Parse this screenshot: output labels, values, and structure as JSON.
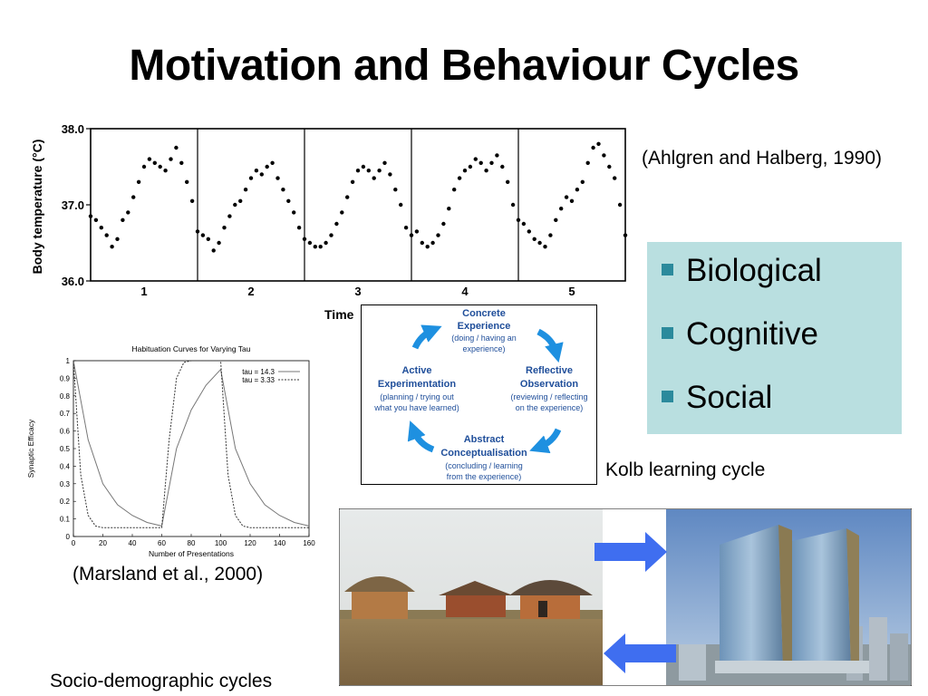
{
  "slide": {
    "title": "Motivation and Behaviour Cycles"
  },
  "temperature_figure": {
    "citation": "(Ahlgren and Halberg, 1990)",
    "chart_data": {
      "type": "scatter",
      "ylabel": "Body  temperature (°C)",
      "xlabel": "Time",
      "y_ticks": [
        "36.0",
        "37.0",
        "38.0"
      ],
      "ylim": [
        36.0,
        38.0
      ],
      "x_ticks": [
        "1",
        "2",
        "3",
        "4",
        "5"
      ],
      "xlim": [
        0,
        5
      ],
      "cycle_boundaries": [
        1,
        2,
        3,
        4
      ],
      "series": [
        {
          "x": [
            0.0,
            0.05,
            0.1,
            0.15,
            0.2,
            0.25,
            0.3,
            0.35,
            0.4,
            0.45,
            0.5,
            0.55,
            0.6,
            0.65,
            0.7,
            0.75,
            0.8,
            0.85,
            0.9,
            0.95,
            1.0,
            1.05,
            1.1,
            1.15,
            1.2,
            1.25,
            1.3,
            1.35,
            1.4,
            1.45,
            1.5,
            1.55,
            1.6,
            1.65,
            1.7,
            1.75,
            1.8,
            1.85,
            1.9,
            1.95,
            2.0,
            2.05,
            2.1,
            2.15,
            2.2,
            2.25,
            2.3,
            2.35,
            2.4,
            2.45,
            2.5,
            2.55,
            2.6,
            2.65,
            2.7,
            2.75,
            2.8,
            2.85,
            2.9,
            2.95,
            3.0,
            3.05,
            3.1,
            3.15,
            3.2,
            3.25,
            3.3,
            3.35,
            3.4,
            3.45,
            3.5,
            3.55,
            3.6,
            3.65,
            3.7,
            3.75,
            3.8,
            3.85,
            3.9,
            3.95,
            4.0,
            4.05,
            4.1,
            4.15,
            4.2,
            4.25,
            4.3,
            4.35,
            4.4,
            4.45,
            4.5,
            4.55,
            4.6,
            4.65,
            4.7,
            4.75,
            4.8,
            4.85,
            4.9,
            4.95,
            5.0
          ],
          "y": [
            36.85,
            36.8,
            36.7,
            36.6,
            36.45,
            36.55,
            36.8,
            36.9,
            37.1,
            37.3,
            37.5,
            37.6,
            37.55,
            37.5,
            37.45,
            37.6,
            37.75,
            37.55,
            37.3,
            37.05,
            36.65,
            36.6,
            36.55,
            36.4,
            36.5,
            36.7,
            36.85,
            37.0,
            37.05,
            37.2,
            37.35,
            37.45,
            37.4,
            37.5,
            37.55,
            37.35,
            37.2,
            37.05,
            36.9,
            36.7,
            36.55,
            36.5,
            36.45,
            36.45,
            36.5,
            36.6,
            36.75,
            36.9,
            37.1,
            37.3,
            37.45,
            37.5,
            37.45,
            37.35,
            37.45,
            37.55,
            37.4,
            37.2,
            37.0,
            36.7,
            36.6,
            36.65,
            36.5,
            36.45,
            36.5,
            36.6,
            36.75,
            36.95,
            37.2,
            37.35,
            37.45,
            37.5,
            37.6,
            37.55,
            37.45,
            37.55,
            37.65,
            37.5,
            37.3,
            37.0,
            36.8,
            36.75,
            36.65,
            36.55,
            36.5,
            36.45,
            36.6,
            36.8,
            36.95,
            37.1,
            37.05,
            37.2,
            37.3,
            37.55,
            37.75,
            37.8,
            37.65,
            37.5,
            37.35,
            37.0,
            36.6
          ]
        }
      ]
    }
  },
  "habituation_figure": {
    "citation": "(Marsland et al., 2000)",
    "chart_data": {
      "type": "line",
      "title": "Habituation Curves for Varying Tau",
      "xlabel": "Number of Presentations",
      "ylabel": "Synaptic Efficacy",
      "xlim": [
        0,
        160
      ],
      "ylim": [
        0,
        1
      ],
      "x_ticks": [
        0,
        20,
        40,
        60,
        80,
        100,
        120,
        140,
        160
      ],
      "y_ticks": [
        0,
        0.1,
        0.2,
        0.3,
        0.4,
        0.5,
        0.6,
        0.7,
        0.8,
        0.9,
        1
      ],
      "legend_position": "top-right",
      "series": [
        {
          "name": "tau = 14.3",
          "style": "solid",
          "tau": 14.3,
          "x": [
            0,
            10,
            20,
            30,
            40,
            50,
            60,
            70,
            80,
            90,
            100,
            110,
            120,
            130,
            140,
            150,
            160
          ],
          "y": [
            1.0,
            0.55,
            0.3,
            0.18,
            0.12,
            0.08,
            0.06,
            0.5,
            0.72,
            0.86,
            0.95,
            0.5,
            0.3,
            0.18,
            0.12,
            0.08,
            0.06
          ]
        },
        {
          "name": "tau = 3.33",
          "style": "dashed",
          "tau": 3.33,
          "x": [
            0,
            5,
            10,
            15,
            20,
            40,
            60,
            65,
            70,
            75,
            80,
            100,
            105,
            110,
            115,
            120,
            140,
            160
          ],
          "y": [
            1.0,
            0.35,
            0.12,
            0.06,
            0.05,
            0.05,
            0.05,
            0.55,
            0.9,
            0.99,
            1.0,
            1.0,
            0.35,
            0.12,
            0.06,
            0.05,
            0.05,
            0.05
          ]
        }
      ]
    }
  },
  "kolb_diagram": {
    "caption": "Kolb learning cycle",
    "stages": [
      {
        "title_line1": "Concrete",
        "title_line2": "Experience",
        "sub_line1": "(doing / having an",
        "sub_line2": "experience)"
      },
      {
        "title_line1": "Reflective",
        "title_line2": "Observation",
        "sub_line1": "(reviewing / reflecting",
        "sub_line2": "on the experience)"
      },
      {
        "title_line1": "Abstract",
        "title_line2": "Conceptualisation",
        "sub_line1": "(concluding / learning",
        "sub_line2": "from the experience)"
      },
      {
        "title_line1": "Active",
        "title_line2": "Experimentation",
        "sub_line1": "(planning / trying out",
        "sub_line2": "what you have learned)"
      }
    ],
    "colors": {
      "title": "#1f4e9a",
      "text": "#1f4e9a",
      "arrow": "#1e90e0"
    }
  },
  "bullet_list": {
    "items": [
      "Biological",
      "Cognitive",
      "Social"
    ],
    "colors": {
      "background": "#b9dfe0",
      "marker": "#2b8a9c"
    }
  },
  "socio_figure": {
    "caption": "Socio-demographic cycles",
    "colors": {
      "arrow": "#3f6ef0"
    }
  }
}
